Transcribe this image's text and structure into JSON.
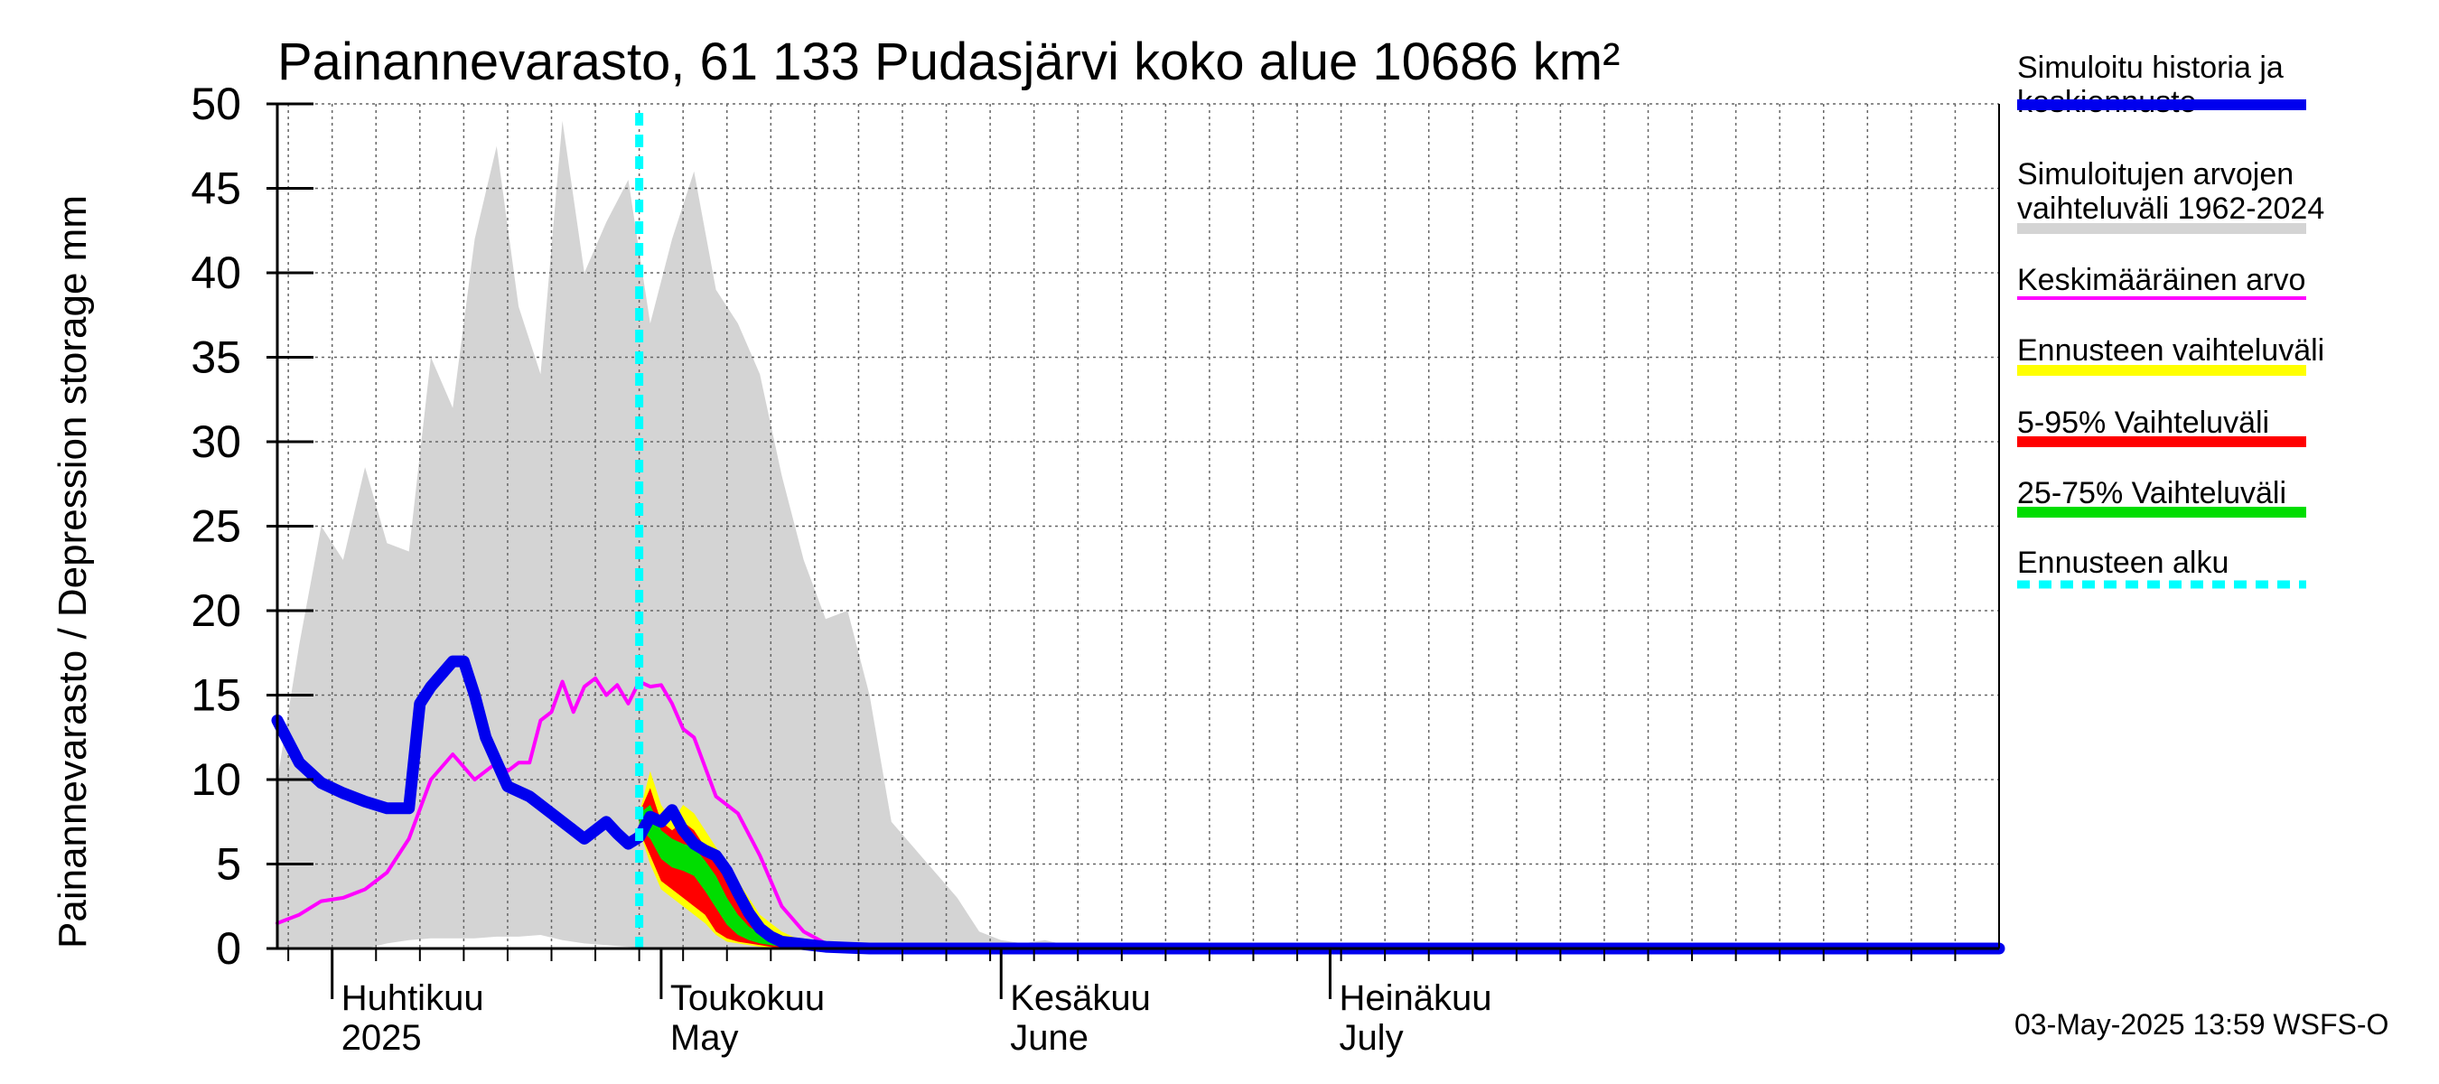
{
  "chart_data": {
    "type": "area",
    "title": "Painannevarasto, 61 133 Pudasjärvi koko alue 10686 km²",
    "ylabel": "Painannevarasto / Depression storage    mm",
    "ylim": [
      0,
      50
    ],
    "yticks": [
      0,
      5,
      10,
      15,
      20,
      25,
      30,
      35,
      40,
      45,
      50
    ],
    "xlim": [
      "2025-03-27",
      "2025-08-31"
    ],
    "x_month_labels": [
      {
        "fi": "Huhtikuu",
        "en": "2025",
        "date": "2025-04-01"
      },
      {
        "fi": "Toukokuu",
        "en": "May",
        "date": "2025-05-01"
      },
      {
        "fi": "Kesäkuu",
        "en": "June",
        "date": "2025-06-01"
      },
      {
        "fi": "Heinäkuu",
        "en": "July",
        "date": "2025-07-01"
      }
    ],
    "grid": true,
    "forecast_start": "2025-04-29",
    "simulated_range": {
      "name": "Simuloitujen arvojen vaihteluväli 1962-2024",
      "color": "#d4d4d4",
      "x": [
        "2025-03-27",
        "2025-03-29",
        "2025-03-31",
        "2025-04-02",
        "2025-04-04",
        "2025-04-06",
        "2025-04-08",
        "2025-04-10",
        "2025-04-12",
        "2025-04-14",
        "2025-04-16",
        "2025-04-18",
        "2025-04-20",
        "2025-04-22",
        "2025-04-24",
        "2025-04-26",
        "2025-04-28",
        "2025-04-30",
        "2025-05-02",
        "2025-05-04",
        "2025-05-06",
        "2025-05-08",
        "2025-05-10",
        "2025-05-12",
        "2025-05-14",
        "2025-05-16",
        "2025-05-18",
        "2025-05-20",
        "2025-05-22",
        "2025-05-24",
        "2025-05-26",
        "2025-05-28",
        "2025-05-30",
        "2025-06-01",
        "2025-06-03",
        "2025-06-05",
        "2025-06-07",
        "2025-06-09",
        "2025-06-11",
        "2025-06-13"
      ],
      "upper": [
        10,
        18,
        25,
        23,
        28.5,
        24,
        23.5,
        35,
        32,
        42,
        47.5,
        38,
        34,
        49,
        40,
        43,
        45.5,
        37,
        42,
        46,
        39,
        37,
        34,
        28,
        23,
        19.5,
        20,
        15,
        7.5,
        6,
        4.5,
        3,
        1,
        0.5,
        0.3,
        0.5,
        0.2,
        0,
        0,
        0
      ],
      "lower": [
        0,
        0,
        0,
        0,
        0,
        0.3,
        0.5,
        0.6,
        0.6,
        0.6,
        0.7,
        0.7,
        0.8,
        0.5,
        0.3,
        0.2,
        0.1,
        0,
        0,
        0,
        0,
        0,
        0,
        0,
        0,
        0,
        0,
        0,
        0,
        0,
        0,
        0,
        0,
        0,
        0,
        0,
        0,
        0,
        0,
        0
      ]
    },
    "forecast_range": {
      "name": "Ennusteen vaihteluväli",
      "color": "#ffff00",
      "x": [
        "2025-04-29",
        "2025-04-30",
        "2025-05-01",
        "2025-05-02",
        "2025-05-03",
        "2025-05-04",
        "2025-05-05",
        "2025-05-06",
        "2025-05-07",
        "2025-05-08",
        "2025-05-09",
        "2025-05-10",
        "2025-05-11",
        "2025-05-12",
        "2025-05-13",
        "2025-05-14",
        "2025-05-15",
        "2025-05-16",
        "2025-05-17",
        "2025-05-18",
        "2025-05-19",
        "2025-05-20"
      ],
      "upper": [
        8,
        10.5,
        8.5,
        7.5,
        8.5,
        8,
        7,
        6,
        5,
        4,
        3,
        2,
        1.5,
        1,
        0.7,
        0.5,
        0.4,
        0.3,
        0.2,
        0.1,
        0.05,
        0
      ],
      "lower": [
        7,
        5,
        3.5,
        3,
        2.5,
        2,
        1.5,
        0.8,
        0.4,
        0.3,
        0.2,
        0.1,
        0.05,
        0,
        0,
        0,
        0,
        0,
        0,
        0,
        0,
        0
      ]
    },
    "p5_95": {
      "name": "5-95% Vaihteluväli",
      "color": "#ff0000",
      "x": [
        "2025-04-29",
        "2025-04-30",
        "2025-05-01",
        "2025-05-02",
        "2025-05-03",
        "2025-05-04",
        "2025-05-05",
        "2025-05-06",
        "2025-05-07",
        "2025-05-08",
        "2025-05-09",
        "2025-05-10",
        "2025-05-11",
        "2025-05-12",
        "2025-05-13",
        "2025-05-14",
        "2025-05-15",
        "2025-05-16",
        "2025-05-17",
        "2025-05-18"
      ],
      "upper": [
        8,
        9.5,
        7.5,
        7,
        7.5,
        7,
        6,
        5,
        4,
        3,
        2,
        1.5,
        1,
        0.7,
        0.5,
        0.4,
        0.3,
        0.2,
        0.1,
        0
      ],
      "lower": [
        7,
        5.5,
        4,
        3.5,
        3,
        2.5,
        2,
        1,
        0.6,
        0.4,
        0.3,
        0.2,
        0.1,
        0,
        0,
        0,
        0,
        0,
        0,
        0
      ]
    },
    "p25_75": {
      "name": "25-75% Vaihteluväli",
      "color": "#00dd00",
      "x": [
        "2025-04-29",
        "2025-04-30",
        "2025-05-01",
        "2025-05-02",
        "2025-05-03",
        "2025-05-04",
        "2025-05-05",
        "2025-05-06",
        "2025-05-07",
        "2025-05-08",
        "2025-05-09",
        "2025-05-10",
        "2025-05-11",
        "2025-05-12",
        "2025-05-13",
        "2025-05-14",
        "2025-05-15",
        "2025-05-16"
      ],
      "upper": [
        8,
        8.5,
        7,
        6.5,
        6.2,
        6,
        5.2,
        4.3,
        3,
        2,
        1.3,
        0.9,
        0.6,
        0.4,
        0.3,
        0.2,
        0.1,
        0
      ],
      "lower": [
        7.2,
        6.5,
        5.3,
        4.8,
        4.6,
        4.3,
        3.4,
        2.4,
        1.4,
        0.8,
        0.5,
        0.3,
        0.2,
        0.1,
        0.05,
        0,
        0,
        0
      ]
    },
    "series": [
      {
        "name": "Simuloitu historia ja keskiennuste",
        "color": "#0000ee",
        "x": [
          "2025-03-27",
          "2025-03-29",
          "2025-03-31",
          "2025-04-02",
          "2025-04-04",
          "2025-04-06",
          "2025-04-08",
          "2025-04-09",
          "2025-04-10",
          "2025-04-12",
          "2025-04-13",
          "2025-04-14",
          "2025-04-15",
          "2025-04-17",
          "2025-04-19",
          "2025-04-21",
          "2025-04-23",
          "2025-04-24",
          "2025-04-26",
          "2025-04-27",
          "2025-04-28",
          "2025-04-29",
          "2025-04-30",
          "2025-05-01",
          "2025-05-02",
          "2025-05-03",
          "2025-05-04",
          "2025-05-05",
          "2025-05-06",
          "2025-05-07",
          "2025-05-08",
          "2025-05-09",
          "2025-05-10",
          "2025-05-11",
          "2025-05-12",
          "2025-05-14",
          "2025-05-16",
          "2025-05-18",
          "2025-05-20",
          "2025-05-25",
          "2025-06-01",
          "2025-08-31"
        ],
        "y": [
          13.5,
          11,
          9.8,
          9.2,
          8.7,
          8.3,
          8.3,
          14.5,
          15.5,
          17,
          17,
          15,
          12.5,
          9.6,
          9,
          8,
          7,
          6.5,
          7.5,
          6.8,
          6.2,
          6.6,
          7.8,
          7.5,
          8.2,
          7,
          6.2,
          5.8,
          5.5,
          4.6,
          3.3,
          2.1,
          1.2,
          0.7,
          0.4,
          0.25,
          0.1,
          0.05,
          0,
          0,
          0,
          0
        ]
      },
      {
        "name": "Keskimääräinen arvo",
        "color": "#ff00ff",
        "x": [
          "2025-03-27",
          "2025-03-29",
          "2025-03-31",
          "2025-04-02",
          "2025-04-04",
          "2025-04-06",
          "2025-04-08",
          "2025-04-10",
          "2025-04-12",
          "2025-04-14",
          "2025-04-16",
          "2025-04-17",
          "2025-04-18",
          "2025-04-19",
          "2025-04-20",
          "2025-04-21",
          "2025-04-22",
          "2025-04-23",
          "2025-04-24",
          "2025-04-25",
          "2025-04-26",
          "2025-04-27",
          "2025-04-28",
          "2025-04-29",
          "2025-04-30",
          "2025-05-01",
          "2025-05-02",
          "2025-05-03",
          "2025-05-04",
          "2025-05-06",
          "2025-05-08",
          "2025-05-10",
          "2025-05-12",
          "2025-05-14",
          "2025-05-16",
          "2025-05-18",
          "2025-05-20",
          "2025-05-24",
          "2025-06-01",
          "2025-08-31"
        ],
        "y": [
          1.5,
          2,
          2.8,
          3,
          3.5,
          4.5,
          6.5,
          10,
          11.5,
          10,
          11,
          10.5,
          11,
          11,
          13.5,
          14,
          15.8,
          14,
          15.5,
          16,
          15,
          15.6,
          14.5,
          15.8,
          15.5,
          15.6,
          14.5,
          13,
          12.5,
          9,
          8,
          5.5,
          2.5,
          1,
          0.3,
          0.1,
          0,
          0,
          0,
          0
        ]
      }
    ],
    "legend": {
      "placement": "right",
      "items": [
        {
          "label": "Simuloitu historia ja keskiennuste",
          "lines": [
            "Simuloitu historia ja",
            "keskiennuste"
          ],
          "color": "#0000ee",
          "style": "thick"
        },
        {
          "label": "Simuloitujen arvojen vaihteluväli 1962-2024",
          "lines": [
            "Simuloitujen arvojen",
            "vaihteluväli 1962-2024"
          ],
          "color": "#d4d4d4",
          "style": "thick"
        },
        {
          "label": "Keskimääräinen arvo",
          "lines": [
            "Keskimääräinen arvo"
          ],
          "color": "#ff00ff",
          "style": "thin"
        },
        {
          "label": "Ennusteen vaihteluväli",
          "lines": [
            "Ennusteen vaihteluväli"
          ],
          "color": "#ffff00",
          "style": "thick"
        },
        {
          "label": "5-95% Vaihteluväli",
          "lines": [
            "5-95% Vaihteluväli"
          ],
          "color": "#ff0000",
          "style": "thick"
        },
        {
          "label": "25-75% Vaihteluväli",
          "lines": [
            "25-75% Vaihteluväli"
          ],
          "color": "#00dd00",
          "style": "thick"
        },
        {
          "label": "Ennusteen alku",
          "lines": [
            "Ennusteen alku"
          ],
          "color": "#00ffff",
          "style": "dotted"
        }
      ]
    },
    "timestamp": "03-May-2025 13:59 WSFS-O"
  }
}
